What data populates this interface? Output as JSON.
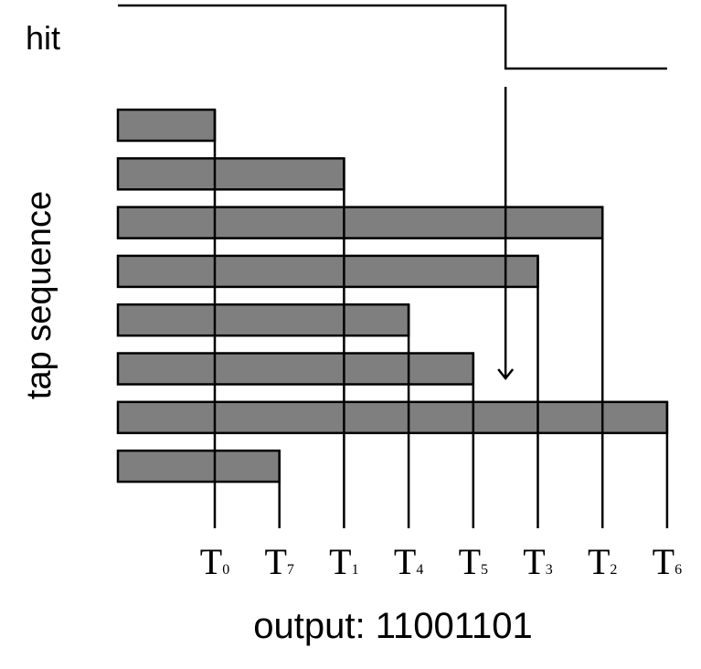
{
  "hit_label": "hit",
  "tap_sequence_label": "tap sequence",
  "output_text": "output: 11001101",
  "colors": {
    "bar_fill": "#7f7f7f",
    "stroke": "#000000"
  },
  "taps": [
    {
      "name": "T",
      "sub": "0",
      "order": 0
    },
    {
      "name": "T",
      "sub": "1",
      "order": 2
    },
    {
      "name": "T",
      "sub": "2",
      "order": 6
    },
    {
      "name": "T",
      "sub": "3",
      "order": 5
    },
    {
      "name": "T",
      "sub": "4",
      "order": 3
    },
    {
      "name": "T",
      "sub": "5",
      "order": 4
    },
    {
      "name": "T",
      "sub": "6",
      "order": 7
    },
    {
      "name": "T",
      "sub": "7",
      "order": 1
    }
  ],
  "hit_drop_order": 4.5
}
